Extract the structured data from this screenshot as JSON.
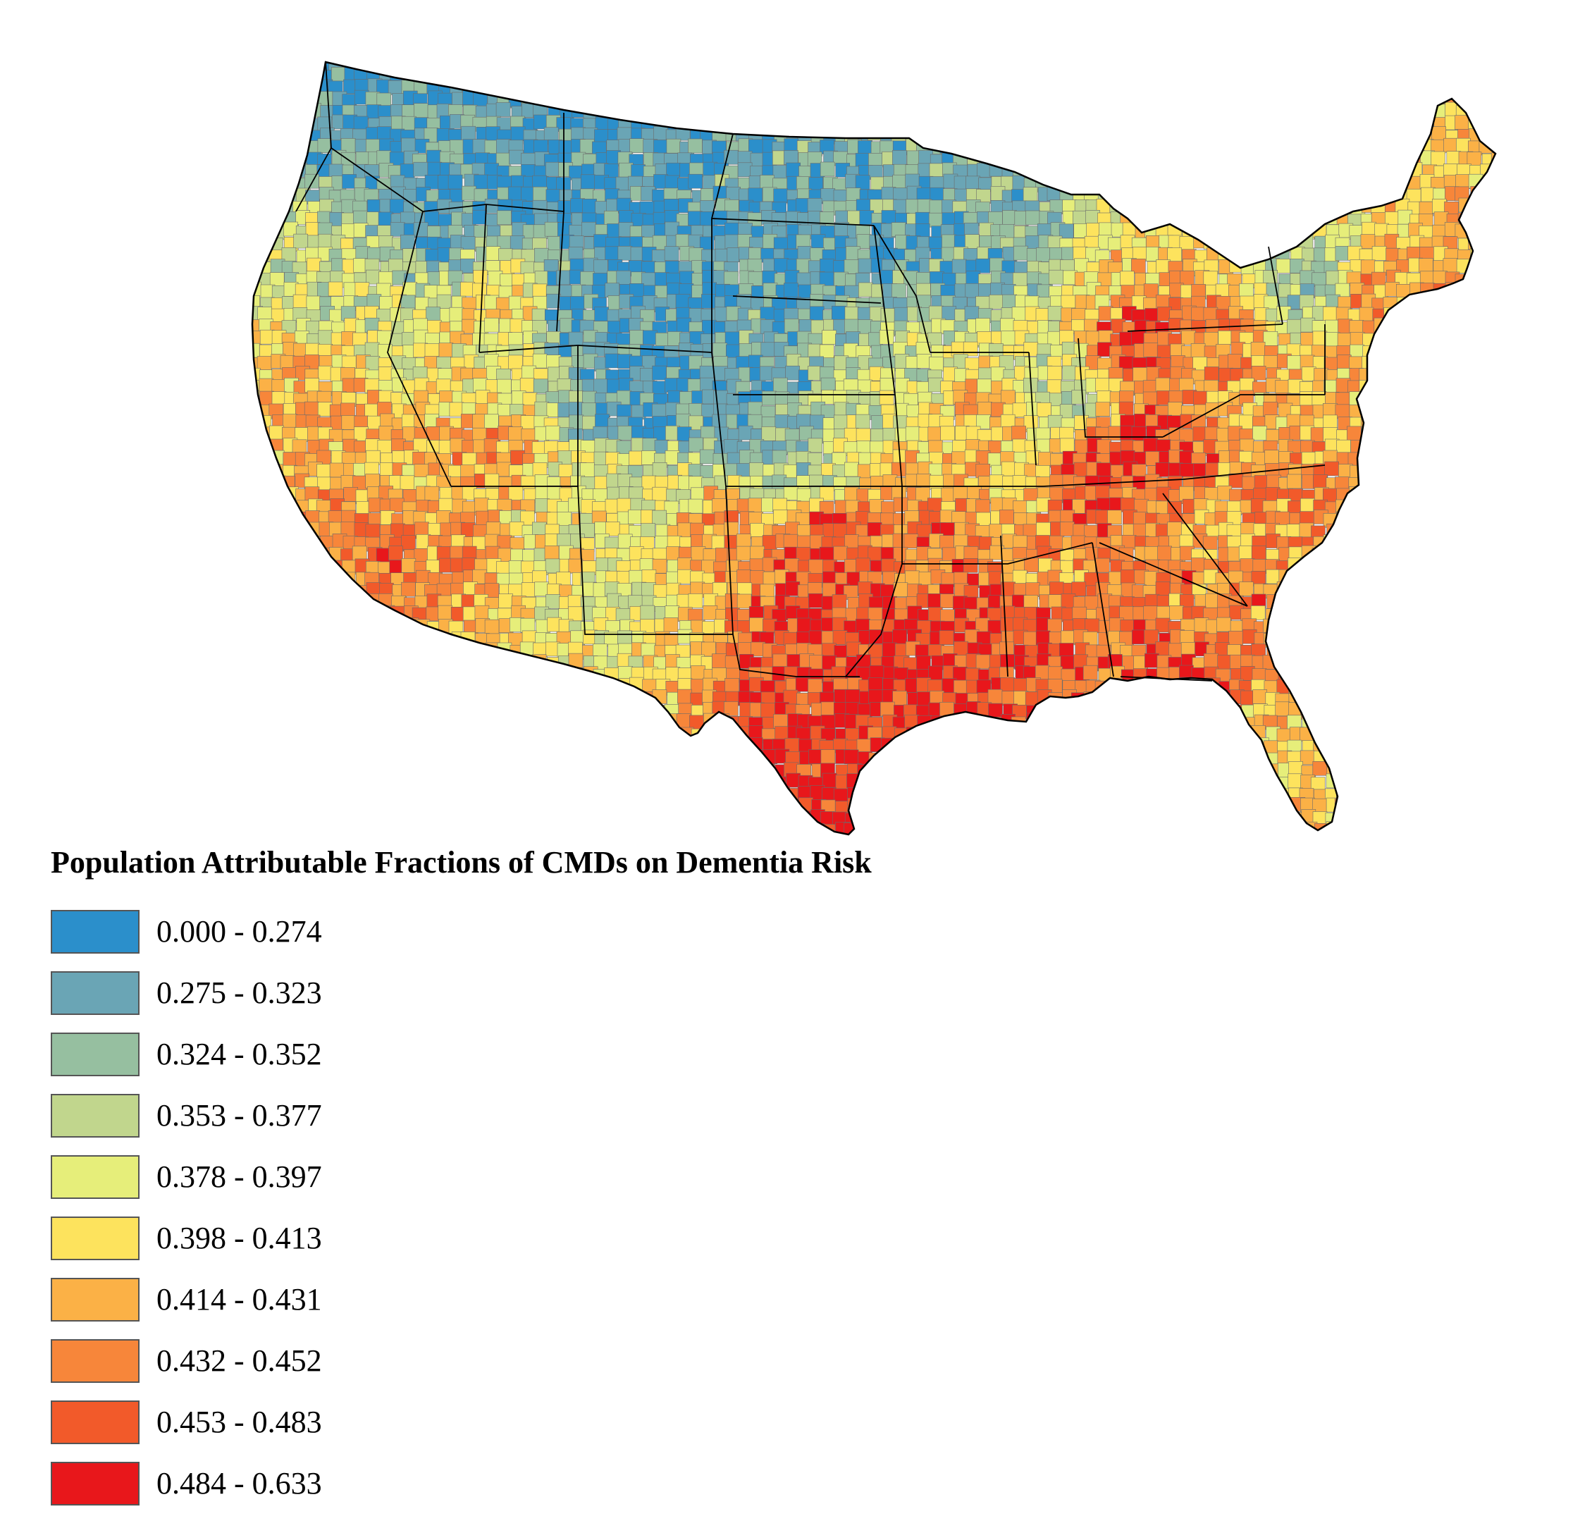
{
  "legend": {
    "title": "Population Attributable Fractions of CMDs on Dementia Risk",
    "classes": [
      {
        "label": "0.000 - 0.274",
        "color": "#2b8fcb"
      },
      {
        "label": "0.275 - 0.323",
        "color": "#6aa5b5"
      },
      {
        "label": "0.324 - 0.352",
        "color": "#96bfa0"
      },
      {
        "label": "0.353 - 0.377",
        "color": "#c1d68d"
      },
      {
        "label": "0.378 - 0.397",
        "color": "#e6ee7a"
      },
      {
        "label": "0.398 - 0.413",
        "color": "#fde35d"
      },
      {
        "label": "0.414 - 0.431",
        "color": "#fbb146"
      },
      {
        "label": "0.432 - 0.452",
        "color": "#f7863a"
      },
      {
        "label": "0.453 - 0.483",
        "color": "#f25a2a"
      },
      {
        "label": "0.484 - 0.633",
        "color": "#e8171b"
      }
    ]
  },
  "map": {
    "region": "contiguous United States",
    "unit": "county",
    "background_color": "#ffffff",
    "border_color": "#000000"
  }
}
